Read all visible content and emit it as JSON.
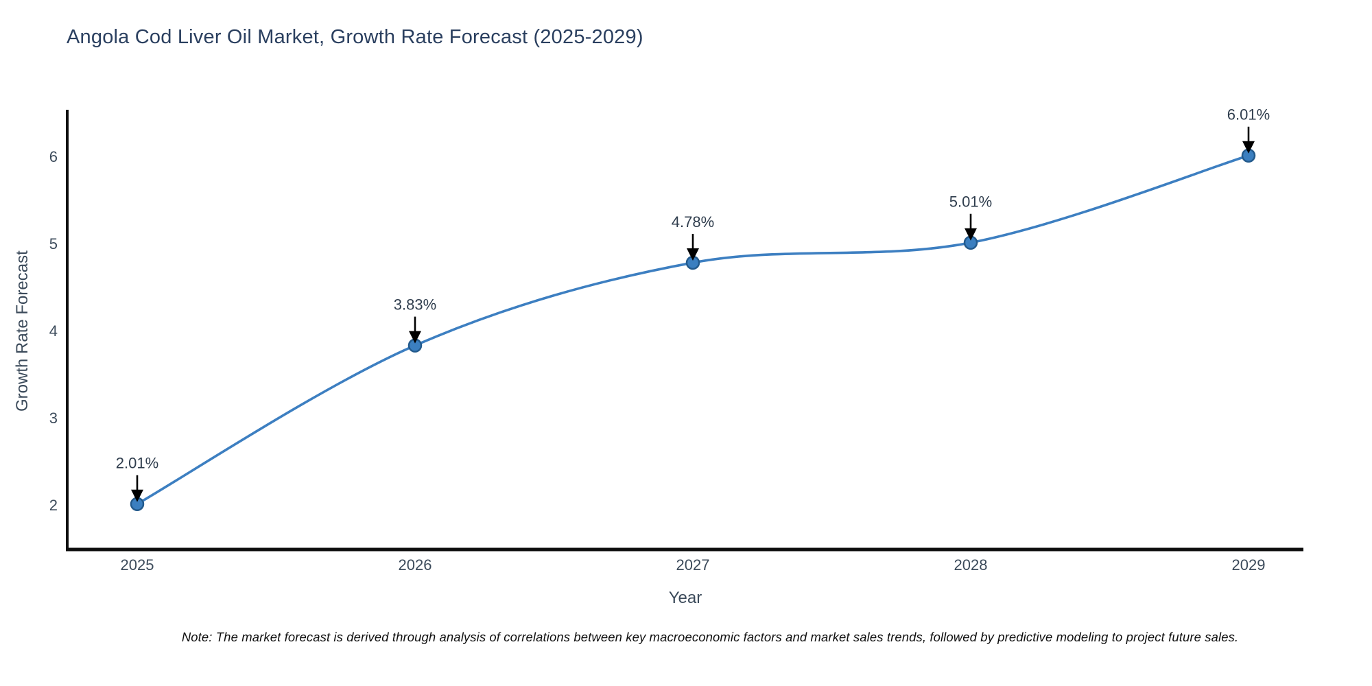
{
  "title": "Angola Cod Liver Oil Market, Growth Rate Forecast (2025-2029)",
  "note": "Note: The market forecast is derived through analysis of correlations between key macroeconomic factors and market sales trends, followed by predictive modeling to project future sales.",
  "chart_data": {
    "type": "line",
    "title": "Angola Cod Liver Oil Market, Growth Rate Forecast (2025-2029)",
    "xlabel": "Year",
    "ylabel": "Growth Rate Forecast",
    "x": [
      2025,
      2026,
      2027,
      2028,
      2029
    ],
    "values": [
      2.01,
      3.83,
      4.78,
      5.01,
      6.01
    ],
    "point_labels": [
      "2.01%",
      "3.83%",
      "4.78%",
      "5.01%",
      "6.01%"
    ],
    "x_tick_labels": [
      "2025",
      "2026",
      "2027",
      "2028",
      "2029"
    ],
    "y_ticks": [
      2,
      3,
      4,
      5,
      6
    ],
    "ylim": [
      1.47,
      6.54
    ],
    "xlim": [
      2024.75,
      2029.2
    ],
    "grid": false,
    "legend": "none",
    "line_shape": "spline",
    "colors": {
      "line": "#3d7fc1",
      "marker_fill": "#3b7fc0",
      "marker_edge": "#235a8c",
      "annotation_text": "#2f3d4d",
      "annotation_arrow": "#000000",
      "axis_spine": "#0d0d0d",
      "tick_label": "#3b4a5a",
      "title": "#2a3f5f"
    }
  }
}
